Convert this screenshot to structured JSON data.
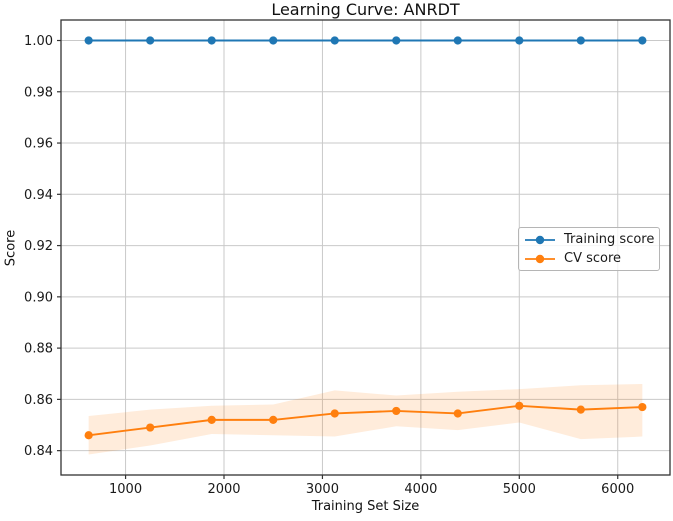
{
  "chart_data": {
    "type": "line",
    "title": "Learning Curve: ANRDT",
    "xlabel": "Training Set Size",
    "ylabel": "Score",
    "x": [
      625,
      1250,
      1875,
      2500,
      3125,
      3750,
      4375,
      5000,
      5625,
      6250
    ],
    "series": [
      {
        "name": "Training score",
        "color": "#1f77b4",
        "values": [
          1.0,
          1.0,
          1.0,
          1.0,
          1.0,
          1.0,
          1.0,
          1.0,
          1.0,
          1.0
        ]
      },
      {
        "name": "CV score",
        "color": "#ff7f0e",
        "values": [
          0.846,
          0.849,
          0.852,
          0.852,
          0.8545,
          0.8555,
          0.8545,
          0.8575,
          0.856,
          0.857
        ],
        "band_upper": [
          0.8535,
          0.856,
          0.8575,
          0.858,
          0.8635,
          0.8615,
          0.863,
          0.864,
          0.8655,
          0.866
        ],
        "band_lower": [
          0.8385,
          0.842,
          0.8465,
          0.846,
          0.8455,
          0.8495,
          0.848,
          0.851,
          0.8445,
          0.8455
        ],
        "band_color": "rgba(255,127,14,0.15)"
      }
    ],
    "xlim": [
      344,
      6531
    ],
    "ylim": [
      0.8305,
      1.008
    ],
    "xticks": [
      1000,
      2000,
      3000,
      4000,
      5000,
      6000
    ],
    "yticks": [
      0.84,
      0.86,
      0.88,
      0.9,
      0.92,
      0.94,
      0.96,
      0.98,
      1.0
    ],
    "grid": true,
    "legend": {
      "position": "center right",
      "entries": [
        "Training score",
        "CV score"
      ]
    },
    "style": {
      "grid_color": "#c9c9c9",
      "spine_color": "#333333",
      "text_color": "#1a1a1a",
      "background": "#ffffff"
    }
  }
}
